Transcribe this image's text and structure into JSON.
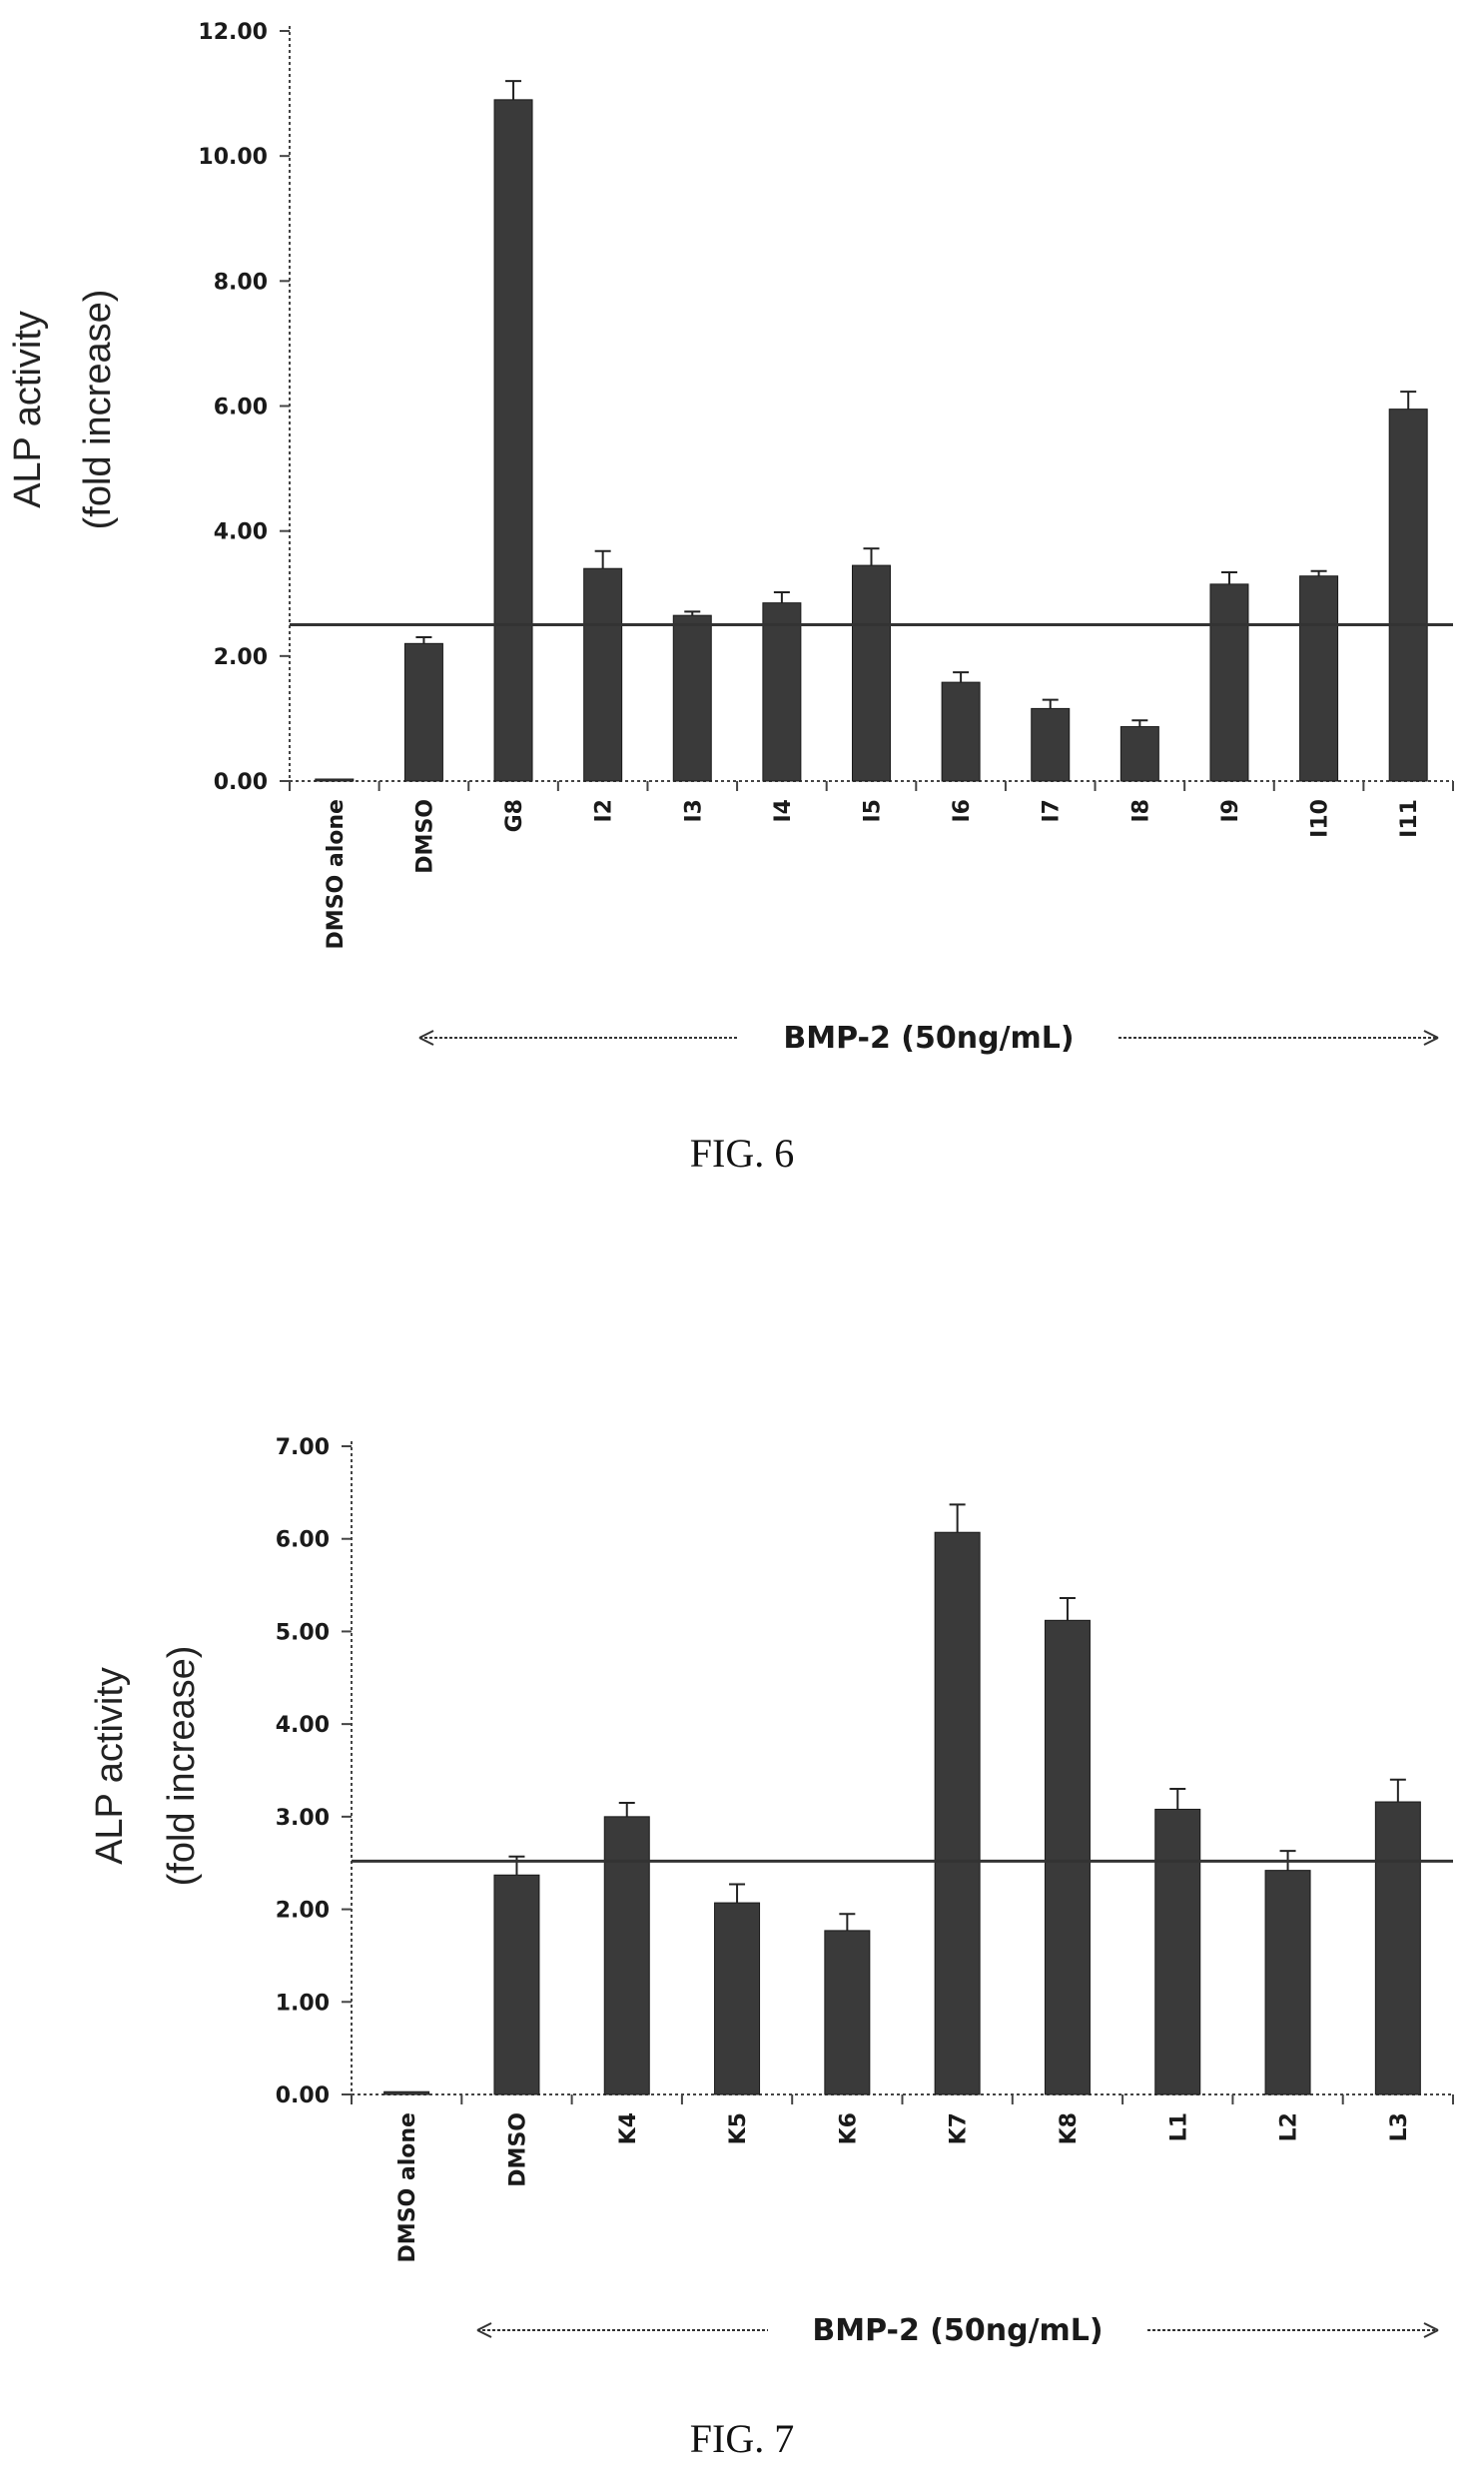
{
  "chart_data": [
    {
      "type": "bar",
      "caption": "FIG. 6",
      "ylabel": [
        "ALP activity",
        "(fold increase)"
      ],
      "ylim": [
        0,
        12
      ],
      "yticks": [
        0,
        2,
        4,
        6,
        8,
        10,
        12
      ],
      "ytick_labels": [
        "0.00",
        "2.00",
        "4.00",
        "6.00",
        "8.00",
        "10.00",
        "12.00"
      ],
      "categories": [
        "DMSO alone",
        "DMSO",
        "G8",
        "I2",
        "I3",
        "I4",
        "I5",
        "I6",
        "I7",
        "I8",
        "I9",
        "I10",
        "I11"
      ],
      "values": [
        0.03,
        2.2,
        10.9,
        3.4,
        2.65,
        2.85,
        3.45,
        1.58,
        1.16,
        0.87,
        3.15,
        3.28,
        5.95
      ],
      "errors": [
        0.0,
        0.1,
        0.3,
        0.28,
        0.06,
        0.17,
        0.27,
        0.16,
        0.14,
        0.1,
        0.19,
        0.08,
        0.28
      ],
      "reference_line": 2.5,
      "bracket_label": "BMP-2 (50ng/mL)",
      "bar_color": "#3a3a3a",
      "grid": false
    },
    {
      "type": "bar",
      "caption": "FIG. 7",
      "ylabel": [
        "ALP activity",
        "(fold increase)"
      ],
      "ylim": [
        0,
        7
      ],
      "yticks": [
        0,
        1,
        2,
        3,
        4,
        5,
        6,
        7
      ],
      "ytick_labels": [
        "0.00",
        "1.00",
        "2.00",
        "3.00",
        "4.00",
        "5.00",
        "6.00",
        "7.00"
      ],
      "categories": [
        "DMSO alone",
        "DMSO",
        "K4",
        "K5",
        "K6",
        "K7",
        "K8",
        "L1",
        "L2",
        "L3"
      ],
      "values": [
        0.03,
        2.37,
        3.0,
        2.07,
        1.77,
        6.07,
        5.12,
        3.08,
        2.42,
        3.16
      ],
      "errors": [
        0.0,
        0.2,
        0.15,
        0.2,
        0.18,
        0.3,
        0.24,
        0.22,
        0.21,
        0.24
      ],
      "reference_line": 2.52,
      "bracket_label": "BMP-2 (50ng/mL)",
      "bar_color": "#3a3a3a",
      "grid": false
    }
  ]
}
